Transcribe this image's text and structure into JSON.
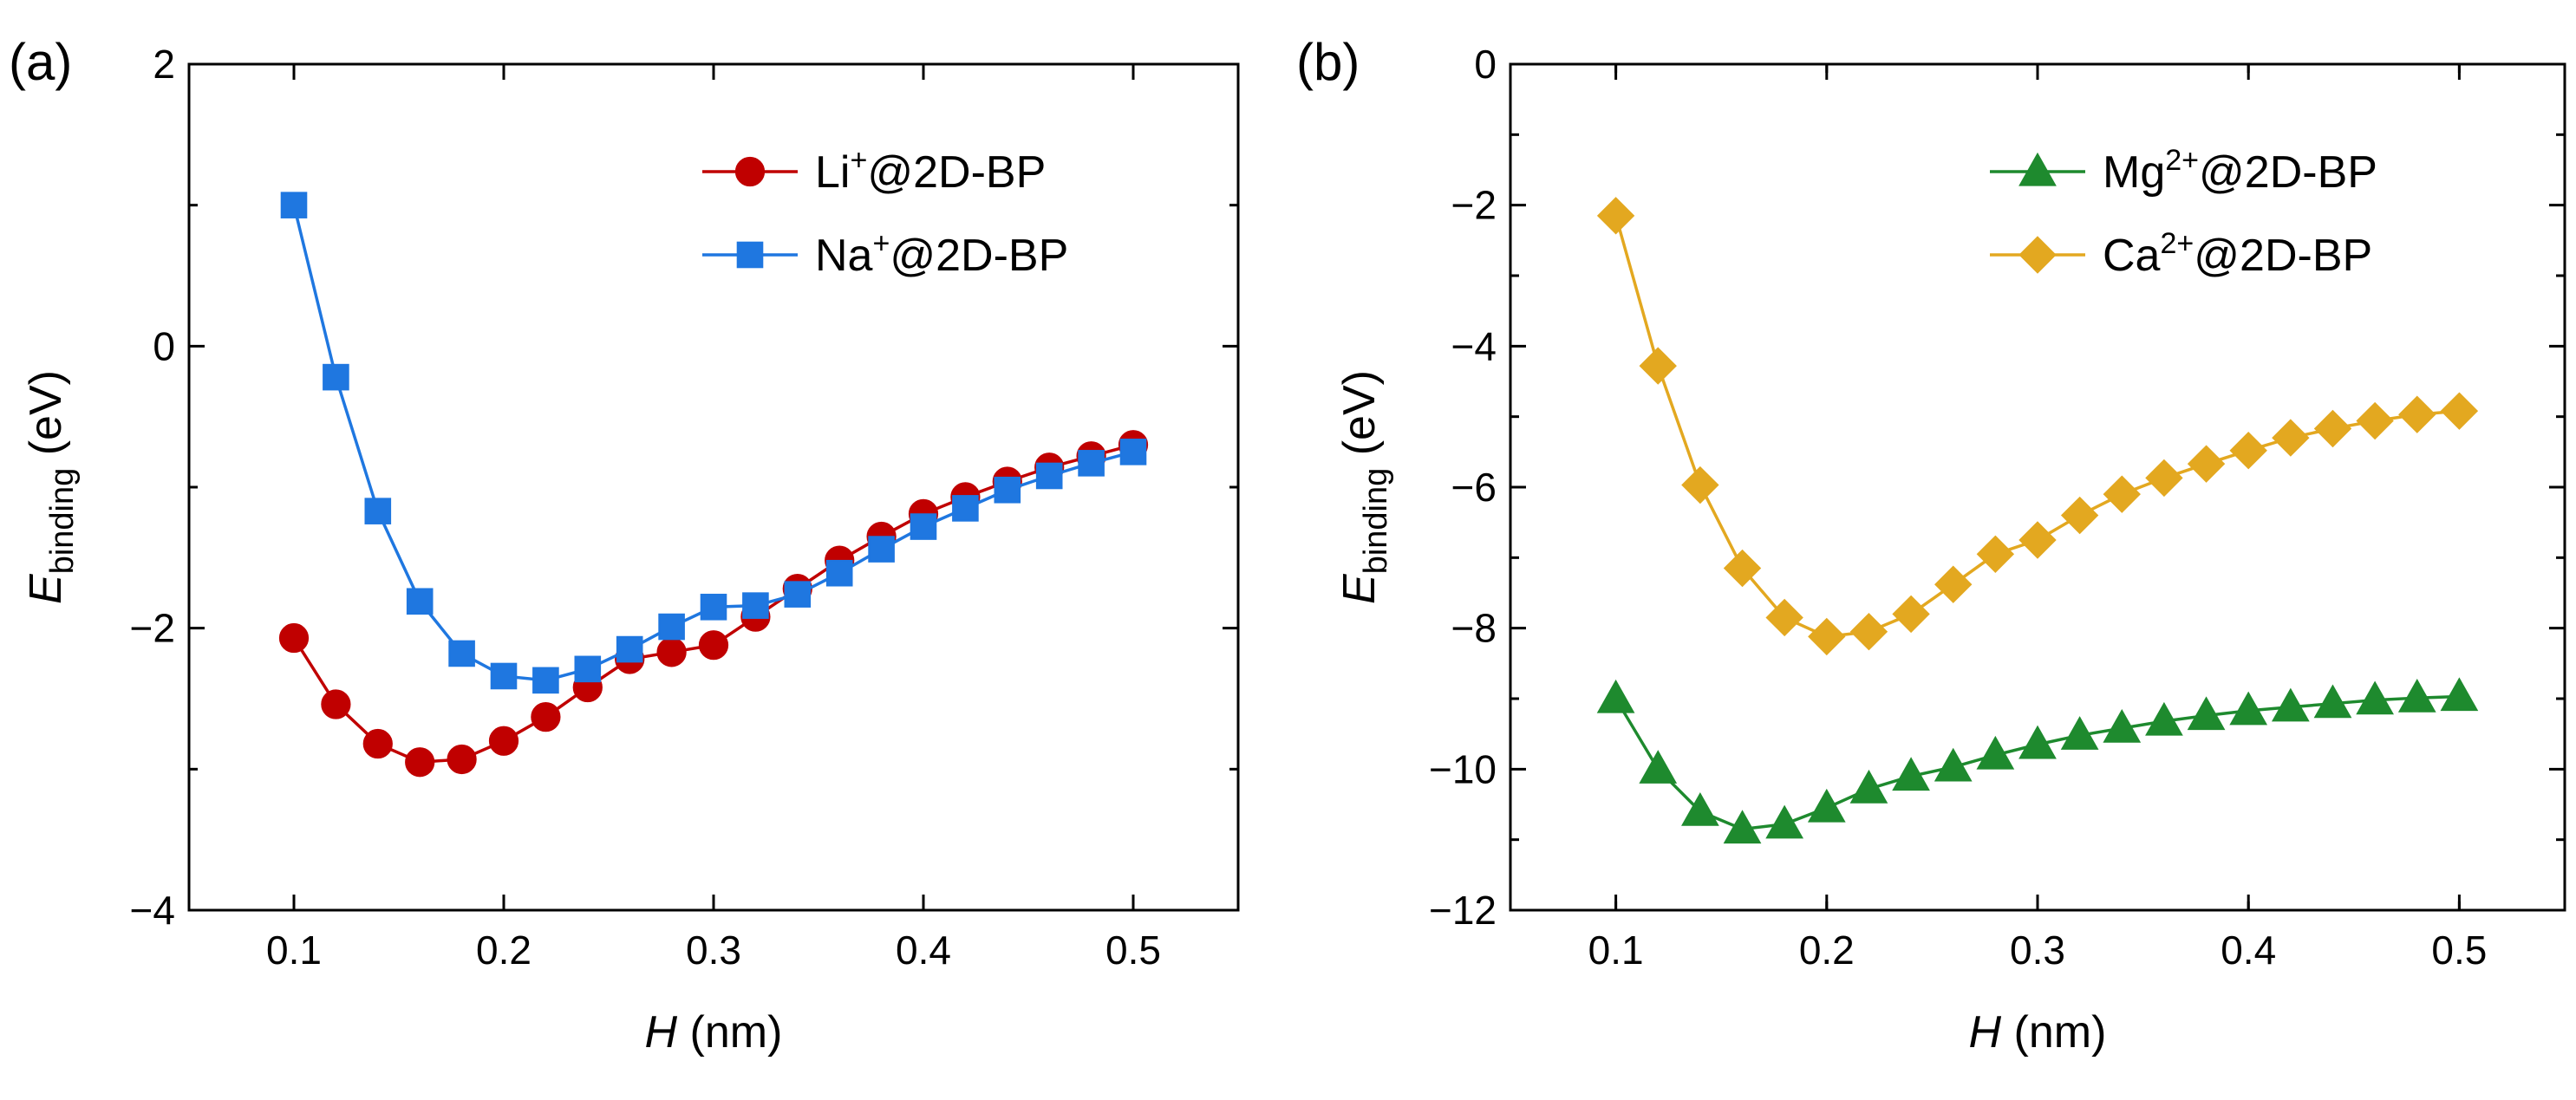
{
  "chart_data": [
    {
      "type": "line",
      "panel_label": "(a)",
      "xlabel": "H",
      "xunit": "(nm)",
      "ylabel": "E",
      "ylabel_sub": "binding",
      "yunit": "(eV)",
      "xlim": [
        0.05,
        0.55
      ],
      "ylim": [
        -4,
        2
      ],
      "xticks": [
        0.1,
        0.2,
        0.3,
        0.4,
        0.5
      ],
      "xtick_labels": [
        "0.1",
        "0.2",
        "0.3",
        "0.4",
        "0.5"
      ],
      "yticks": [
        -4,
        -2,
        0,
        2
      ],
      "ytick_labels": [
        "−4",
        "−2",
        "0",
        "2"
      ],
      "legend_position": "top-right",
      "x": [
        0.1,
        0.12,
        0.14,
        0.16,
        0.18,
        0.2,
        0.22,
        0.24,
        0.26,
        0.28,
        0.3,
        0.32,
        0.34,
        0.36,
        0.38,
        0.4,
        0.42,
        0.44,
        0.46,
        0.48,
        0.5
      ],
      "series": [
        {
          "name": "Li⁺@2D-BP",
          "legend_base": "Li",
          "legend_sup": "+",
          "legend_rest": "@2D-BP",
          "marker": "circle",
          "color": "#C00000",
          "values": [
            -2.07,
            -2.54,
            -2.82,
            -2.95,
            -2.93,
            -2.8,
            -2.63,
            -2.42,
            -2.22,
            -2.17,
            -2.12,
            -1.92,
            -1.72,
            -1.52,
            -1.35,
            -1.19,
            -1.07,
            -0.96,
            -0.86,
            -0.78,
            -0.7
          ]
        },
        {
          "name": "Na⁺@2D-BP",
          "legend_base": "Na",
          "legend_sup": "+",
          "legend_rest": "@2D-BP",
          "marker": "square",
          "color": "#1F77E0",
          "values": [
            1.0,
            -0.22,
            -1.17,
            -1.81,
            -2.18,
            -2.34,
            -2.37,
            -2.29,
            -2.15,
            -1.99,
            -1.85,
            -1.84,
            -1.76,
            -1.61,
            -1.44,
            -1.28,
            -1.15,
            -1.02,
            -0.92,
            -0.83,
            -0.75
          ]
        }
      ]
    },
    {
      "type": "line",
      "panel_label": "(b)",
      "xlabel": "H",
      "xunit": "(nm)",
      "ylabel": "E",
      "ylabel_sub": "binding",
      "yunit": "(eV)",
      "xlim": [
        0.05,
        0.55
      ],
      "ylim": [
        -12,
        0
      ],
      "xticks": [
        0.1,
        0.2,
        0.3,
        0.4,
        0.5
      ],
      "xtick_labels": [
        "0.1",
        "0.2",
        "0.3",
        "0.4",
        "0.5"
      ],
      "yticks": [
        -12,
        -10,
        -8,
        -6,
        -4,
        -2,
        0
      ],
      "ytick_labels": [
        "−12",
        "−10",
        "−8",
        "−6",
        "−4",
        "−2",
        "0"
      ],
      "legend_position": "top-right",
      "x": [
        0.1,
        0.12,
        0.14,
        0.16,
        0.18,
        0.2,
        0.22,
        0.24,
        0.26,
        0.28,
        0.3,
        0.32,
        0.34,
        0.36,
        0.38,
        0.4,
        0.42,
        0.44,
        0.46,
        0.48,
        0.5
      ],
      "series": [
        {
          "name": "Mg²⁺@2D-BP",
          "legend_base": "Mg",
          "legend_sup": "2+",
          "legend_rest": "@2D-BP",
          "marker": "triangle",
          "color": "#1E8A2E",
          "values": [
            -9.0,
            -10.0,
            -10.6,
            -10.85,
            -10.78,
            -10.55,
            -10.28,
            -10.1,
            -9.97,
            -9.8,
            -9.65,
            -9.52,
            -9.42,
            -9.32,
            -9.24,
            -9.17,
            -9.12,
            -9.07,
            -9.02,
            -8.99,
            -8.97
          ]
        },
        {
          "name": "Ca²⁺@2D-BP",
          "legend_base": "Ca",
          "legend_sup": "2+",
          "legend_rest": "@2D-BP",
          "marker": "diamond",
          "color": "#E3A820",
          "values": [
            -2.15,
            -4.28,
            -5.97,
            -7.15,
            -7.85,
            -8.12,
            -8.05,
            -7.8,
            -7.38,
            -6.95,
            -6.75,
            -6.4,
            -6.1,
            -5.87,
            -5.67,
            -5.48,
            -5.3,
            -5.17,
            -5.06,
            -4.97,
            -4.92
          ]
        }
      ]
    }
  ]
}
